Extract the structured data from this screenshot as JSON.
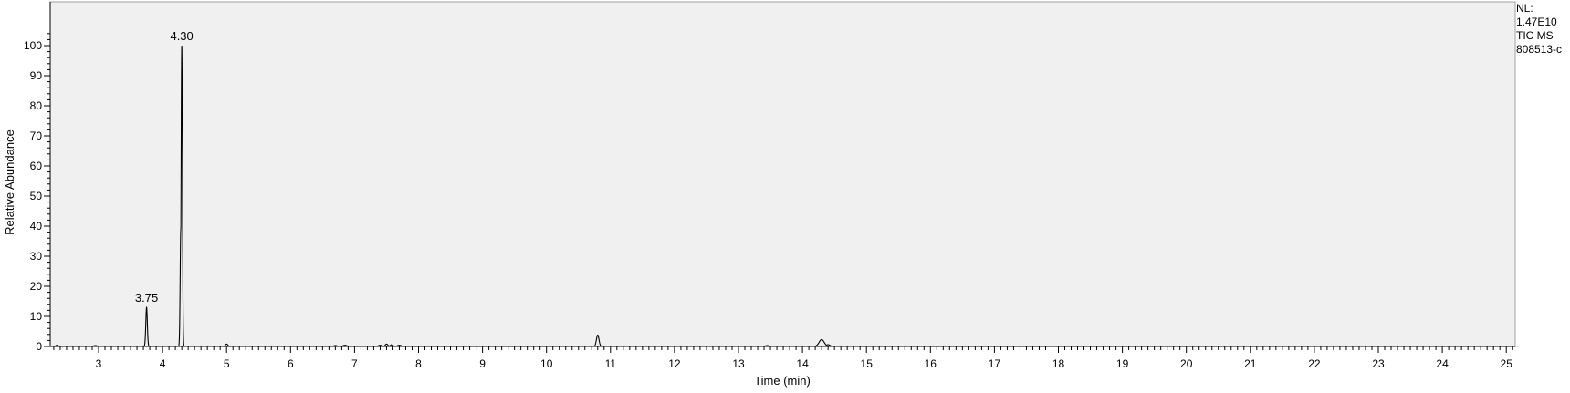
{
  "chart_data": {
    "type": "line",
    "title": "",
    "xlabel": "Time (min)",
    "ylabel": "Relative Abundance",
    "xlim": [
      2.2,
      25.2
    ],
    "ylim": [
      0,
      108
    ],
    "x_ticks": [
      "3",
      "4",
      "5",
      "6",
      "7",
      "8",
      "9",
      "10",
      "11",
      "12",
      "13",
      "14",
      "15",
      "16",
      "17",
      "18",
      "19",
      "20",
      "21",
      "22",
      "23",
      "24",
      "25"
    ],
    "y_ticks": [
      "0",
      "10",
      "20",
      "30",
      "40",
      "50",
      "60",
      "70",
      "80",
      "90",
      "100"
    ],
    "grid": false,
    "background": "#f0f0f0",
    "line_color": "#000000",
    "peak_labels": [
      {
        "x": 3.75,
        "y": 13,
        "text": "3.75"
      },
      {
        "x": 4.3,
        "y": 100,
        "text": "4.30"
      }
    ],
    "series": [
      {
        "peaks": [
          {
            "x": 2.35,
            "y": 0.4,
            "w": 0.02
          },
          {
            "x": 2.95,
            "y": 0.3,
            "w": 0.03
          },
          {
            "x": 3.75,
            "y": 13,
            "w": 0.012
          },
          {
            "x": 4.285,
            "y": 39,
            "w": 0.01
          },
          {
            "x": 4.3,
            "y": 100,
            "w": 0.01
          },
          {
            "x": 5.0,
            "y": 0.8,
            "w": 0.02
          },
          {
            "x": 6.7,
            "y": 0.3,
            "w": 0.03
          },
          {
            "x": 6.85,
            "y": 0.4,
            "w": 0.03
          },
          {
            "x": 7.4,
            "y": 0.4,
            "w": 0.03
          },
          {
            "x": 7.5,
            "y": 0.8,
            "w": 0.02
          },
          {
            "x": 7.58,
            "y": 0.6,
            "w": 0.02
          },
          {
            "x": 7.7,
            "y": 0.4,
            "w": 0.03
          },
          {
            "x": 10.8,
            "y": 3.8,
            "w": 0.02
          },
          {
            "x": 13.45,
            "y": 0.3,
            "w": 0.03
          },
          {
            "x": 14.3,
            "y": 2.3,
            "w": 0.04
          },
          {
            "x": 14.4,
            "y": 0.6,
            "w": 0.03
          }
        ]
      }
    ]
  },
  "side_info": {
    "line1": "NL:",
    "line2": "1.47E10",
    "line3": "TIC  MS",
    "line4": "808513-c"
  }
}
